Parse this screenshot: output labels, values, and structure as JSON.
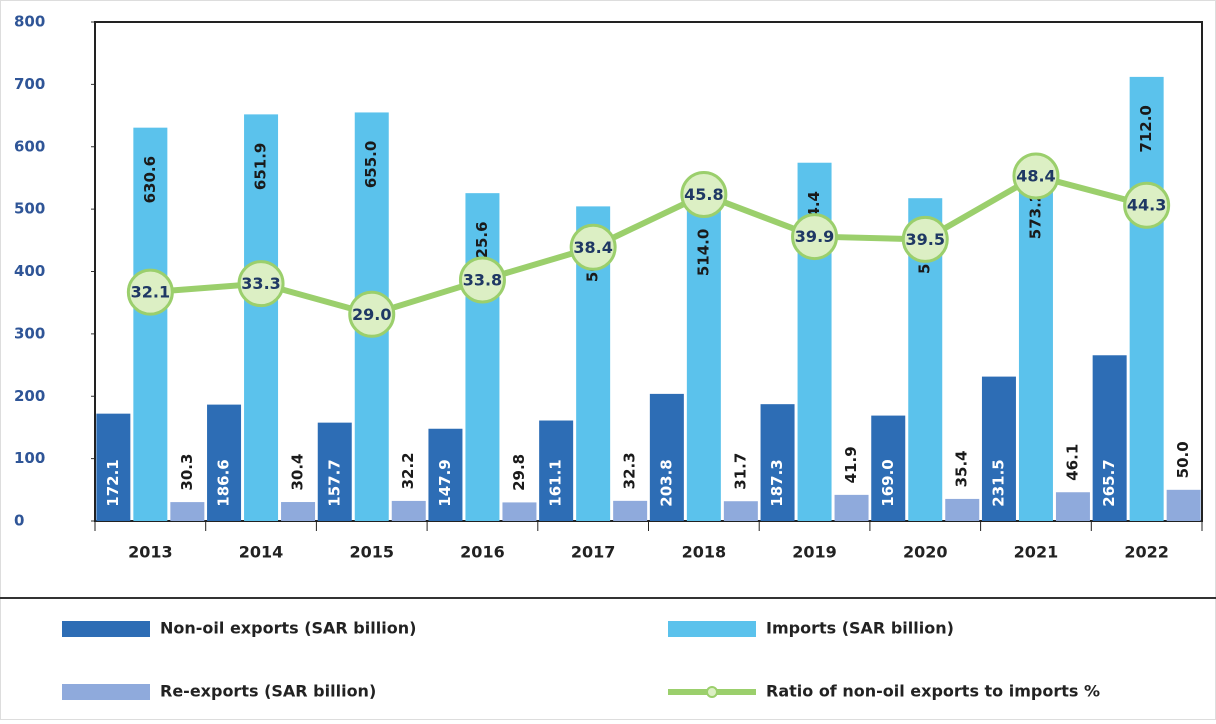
{
  "chart_data": {
    "type": "bar",
    "categories": [
      "2013",
      "2014",
      "2015",
      "2016",
      "2017",
      "2018",
      "2019",
      "2020",
      "2021",
      "2022"
    ],
    "ylim": [
      0,
      800
    ],
    "yticks": [
      0,
      100,
      200,
      300,
      400,
      500,
      600,
      700,
      800
    ],
    "y2lim": [
      0,
      70
    ],
    "series": [
      {
        "name": "Non-oil exports (SAR billion)",
        "color": "#2d6db5",
        "values": [
          172.1,
          186.6,
          157.7,
          147.9,
          161.1,
          203.8,
          187.3,
          169.0,
          231.5,
          265.7
        ],
        "value_labels": [
          "172.1",
          "186.6",
          "157.7",
          "147.9",
          "161.1",
          "203.8",
          "187.3",
          "169.0",
          "231.5",
          "265.7"
        ]
      },
      {
        "name": "Imports (SAR billion)",
        "color": "#5bc2ec",
        "values": [
          630.6,
          651.9,
          655.0,
          525.6,
          504.4,
          514.0,
          574.4,
          517.5,
          573.2,
          712.0
        ],
        "value_labels": [
          "630.6",
          "651.9",
          "655.0",
          "525.6",
          "504.4",
          "514.0",
          "574.4",
          "517.5",
          "573.2",
          "712.0"
        ]
      },
      {
        "name": "Re-exports (SAR billion)",
        "color": "#8faadc",
        "values": [
          30.3,
          30.4,
          32.2,
          29.8,
          32.3,
          31.7,
          41.9,
          35.4,
          46.1,
          50.0
        ],
        "value_labels": [
          "30.3",
          "30.4",
          "32.2",
          "29.8",
          "32.3",
          "31.7",
          "41.9",
          "35.4",
          "46.1",
          "50.0"
        ]
      },
      {
        "name": "Ratio of non-oil exports to imports %",
        "color": "#9bcf6c",
        "type": "line",
        "axis": "y2",
        "values": [
          32.1,
          33.3,
          29.0,
          33.8,
          38.4,
          45.8,
          39.9,
          39.5,
          48.4,
          44.3
        ],
        "value_labels": [
          "32.1",
          "33.3",
          "29.0",
          "33.8",
          "38.4",
          "45.8",
          "39.9",
          "39.5",
          "48.4",
          "44.3"
        ]
      }
    ],
    "legend": "bottom"
  }
}
